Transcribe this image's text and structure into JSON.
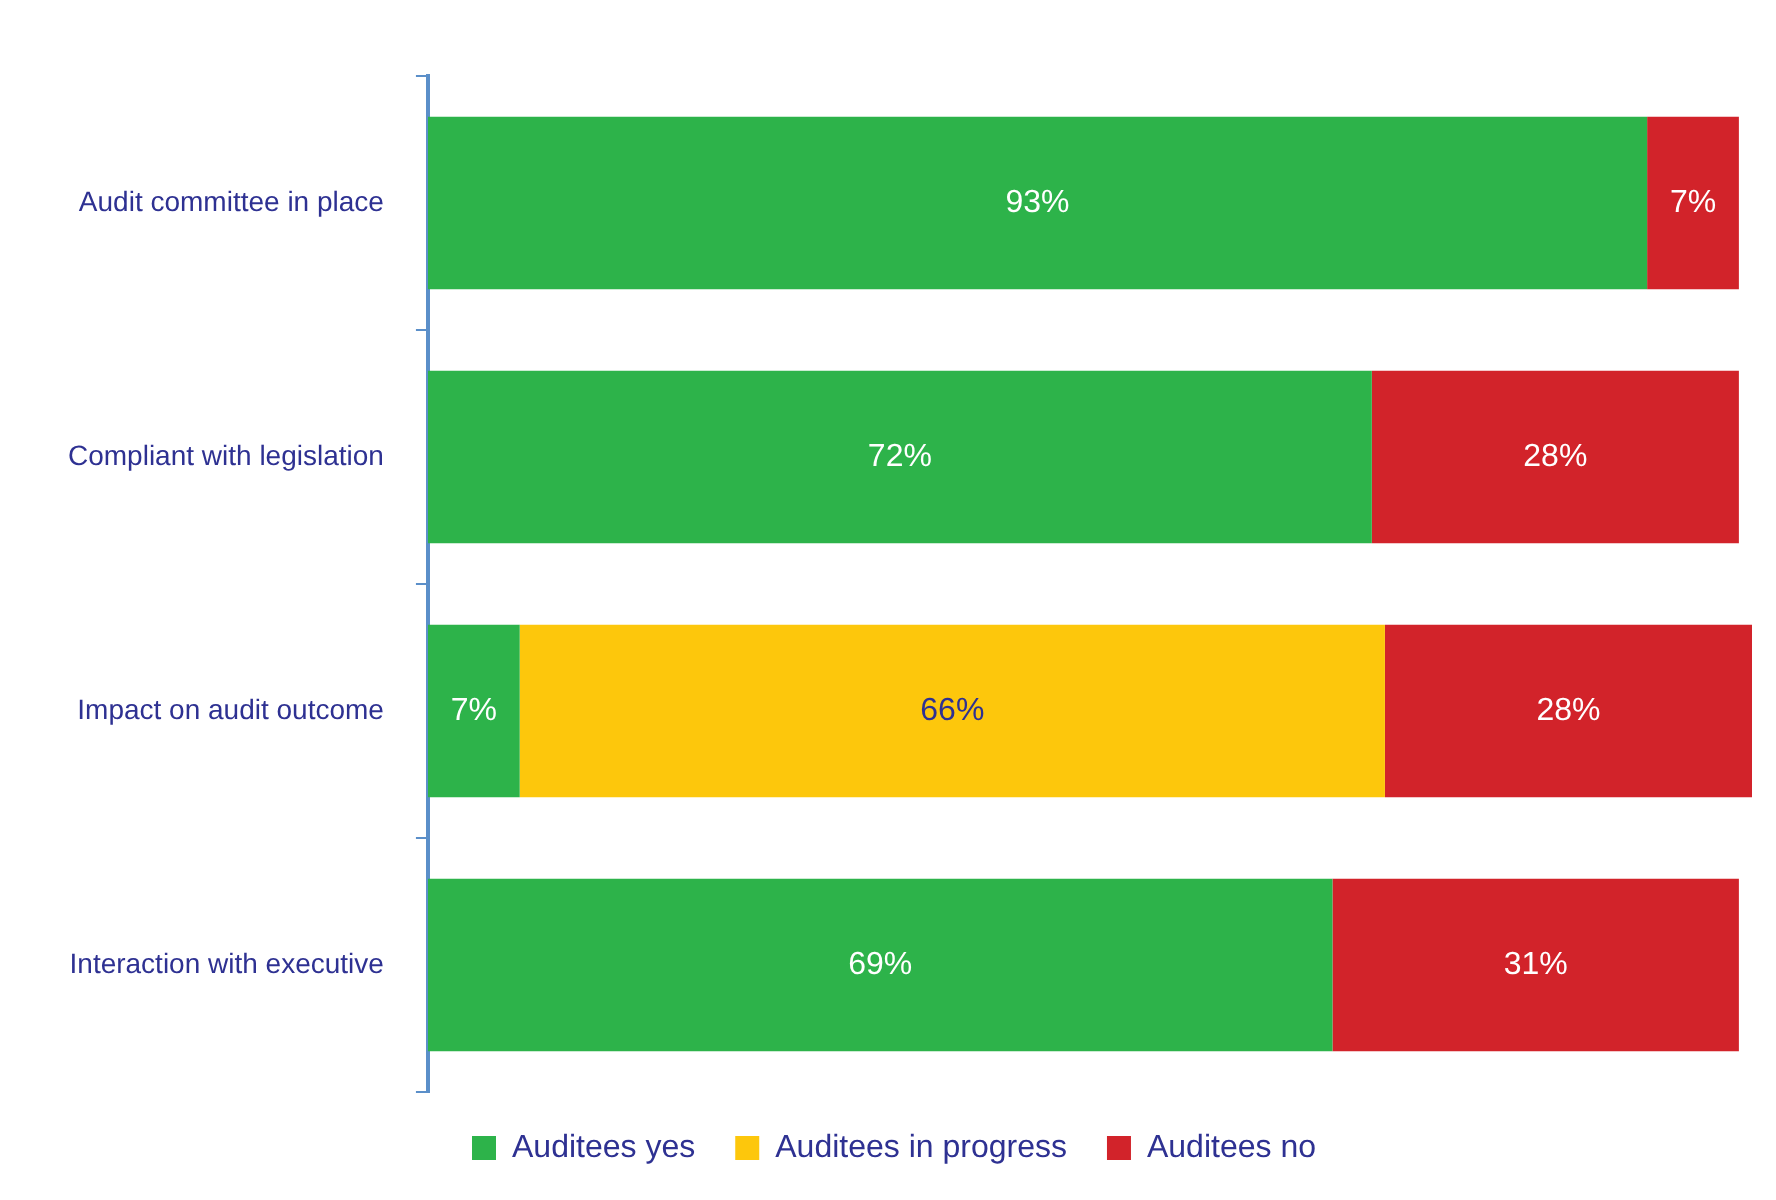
{
  "chart_data": {
    "type": "bar",
    "orientation": "horizontal",
    "stacked": true,
    "categories": [
      "Audit committee in place",
      "Compliant with legislation",
      "Impact on audit outcome",
      "Interaction with executive"
    ],
    "series": [
      {
        "name": "Auditees yes",
        "color": "#2db34a",
        "values": [
          93,
          72,
          7,
          69
        ],
        "value_labels": [
          "93%",
          "72%",
          "7%",
          "69%"
        ]
      },
      {
        "name": "Auditees in progress",
        "color": "#fdc70c",
        "values": [
          0,
          0,
          66,
          0
        ],
        "value_labels": [
          null,
          null,
          "66%",
          null
        ]
      },
      {
        "name": "Auditees no",
        "color": "#d2232a",
        "values": [
          7,
          28,
          28,
          31
        ],
        "value_labels": [
          "7%",
          "28%",
          "28%",
          "31%"
        ]
      }
    ],
    "xlim": [
      0,
      101
    ],
    "tick_labels": "y",
    "grid": false,
    "legend": "bottom"
  }
}
